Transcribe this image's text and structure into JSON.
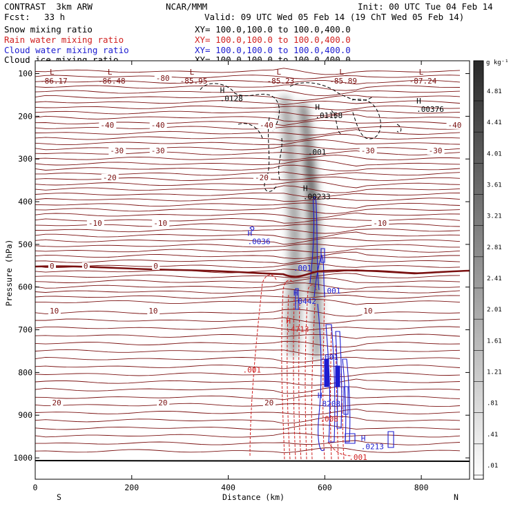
{
  "header": {
    "model": "CONTRAST  3km ARW",
    "center": "NCAR/MMM",
    "init": "Init: 00 UTC Tue 04 Feb 14",
    "fcst_label": "Fcst:",
    "fcst_value": "33 h",
    "valid": "Valid: 09 UTC Wed 05 Feb 14 (19 ChT Wed 05 Feb 14)",
    "fields": [
      {
        "name": "Snow mixing ratio",
        "xy": "XY= 100.0,100.0 to 100.0,400.0",
        "color": "#000000"
      },
      {
        "name": "Rain water mixing ratio",
        "xy": "XY= 100.0,100.0 to 100.0,400.0",
        "color": "#d02020"
      },
      {
        "name": "Cloud water mixing ratio",
        "xy": "XY= 100.0,100.0 to 100.0,400.0",
        "color": "#1c1cd0"
      },
      {
        "name": "Cloud ice mixing ratio",
        "xy": "XY= 100.0,100.0 to 100.0,400.0",
        "color": "#000000"
      }
    ]
  },
  "colorbar": {
    "unit": "g kg⁻¹",
    "labels": [
      "4.81",
      "4.41",
      "4.01",
      "3.61",
      "3.21",
      "2.81",
      "2.41",
      "2.01",
      "1.61",
      "1.21",
      ".81",
      ".41",
      ".01"
    ]
  },
  "chart_data": {
    "type": "contour cross-section",
    "xlabel": "Distance (km)",
    "ylabel": "Pressure (hPa)",
    "xlim": [
      0,
      900
    ],
    "ylim": [
      1050,
      70
    ],
    "xticks": [
      0,
      200,
      400,
      600,
      800
    ],
    "yticks": [
      100,
      200,
      300,
      400,
      500,
      600,
      700,
      800,
      900,
      1000
    ],
    "left_end": "S",
    "right_end": "N",
    "temperature_contours": [
      {
        "label": "-80",
        "x": 250,
        "p": 115
      },
      {
        "label": "-40",
        "x": 135,
        "p": 225
      },
      {
        "label": "-40",
        "x": 240,
        "p": 225
      },
      {
        "label": "-40",
        "x": 465,
        "p": 225
      },
      {
        "label": "-40",
        "x": 855,
        "p": 225
      },
      {
        "label": "-30",
        "x": 155,
        "p": 285
      },
      {
        "label": "-30",
        "x": 240,
        "p": 285
      },
      {
        "label": "-30",
        "x": 675,
        "p": 285
      },
      {
        "label": "-30",
        "x": 815,
        "p": 285
      },
      {
        "label": "-20",
        "x": 140,
        "p": 348
      },
      {
        "label": "-20",
        "x": 455,
        "p": 348
      },
      {
        "label": "-10",
        "x": 110,
        "p": 455
      },
      {
        "label": "-10",
        "x": 245,
        "p": 455
      },
      {
        "label": "-10",
        "x": 700,
        "p": 455
      },
      {
        "label": "0",
        "x": 30,
        "p": 555
      },
      {
        "label": "0",
        "x": 100,
        "p": 555
      },
      {
        "label": "0",
        "x": 245,
        "p": 555
      },
      {
        "label": "10",
        "x": 30,
        "p": 660
      },
      {
        "label": "10",
        "x": 235,
        "p": 660
      },
      {
        "label": "10",
        "x": 680,
        "p": 660
      },
      {
        "label": "20",
        "x": 35,
        "p": 875
      },
      {
        "label": "20",
        "x": 255,
        "p": 875
      },
      {
        "label": "20",
        "x": 475,
        "p": 875
      }
    ],
    "low_labels": [
      {
        "value": "-86.17",
        "x": 10
      },
      {
        "value": "-86.48",
        "x": 130
      },
      {
        "value": "-85.95",
        "x": 300
      },
      {
        "value": "-85.23",
        "x": 480
      },
      {
        "value": "-85.89",
        "x": 610
      },
      {
        "value": "-87.24",
        "x": 775
      }
    ],
    "extrema": [
      {
        "type": "H",
        "value": ".0128",
        "x": 383,
        "p": 150,
        "field": "cloud ice",
        "color": "#000000"
      },
      {
        "type": "H",
        "value": ".01158",
        "x": 580,
        "p": 190,
        "field": "cloud ice",
        "color": "#000000"
      },
      {
        "type": "H",
        "value": ".00376",
        "x": 790,
        "p": 175,
        "field": "cloud ice",
        "color": "#000000"
      },
      {
        "type": "H",
        "value": ".00233",
        "x": 555,
        "p": 380,
        "field": "snow",
        "color": "#000000"
      },
      {
        "type": "H",
        "value": ".0036",
        "x": 440,
        "p": 485,
        "field": "cloud water",
        "color": "#1c1cd0"
      },
      {
        "type": "H",
        "value": ".0442",
        "x": 535,
        "p": 625,
        "field": "cloud water",
        "color": "#1c1cd0"
      },
      {
        "type": "H",
        "value": ".4713",
        "x": 520,
        "p": 690,
        "field": "rain water",
        "color": "#d02020"
      },
      {
        "type": "H",
        "value": ".8208",
        "x": 585,
        "p": 865,
        "field": "cloud water",
        "color": "#1c1cd0"
      },
      {
        "type": "H",
        "value": ".0213",
        "x": 675,
        "p": 965,
        "field": "cloud water",
        "color": "#1c1cd0"
      }
    ],
    "contour_value_labels": [
      {
        "value": ".001",
        "x": 565,
        "p": 290,
        "color": "#000000"
      },
      {
        "value": ".001",
        "x": 535,
        "p": 562,
        "color": "#1c1cd0"
      },
      {
        "value": ".001",
        "x": 595,
        "p": 615,
        "color": "#1c1cd0"
      },
      {
        "value": ".001",
        "x": 590,
        "p": 770,
        "color": "#1c1cd0"
      },
      {
        "value": ".001",
        "x": 430,
        "p": 800,
        "color": "#d02020"
      },
      {
        "value": ".008",
        "x": 590,
        "p": 915,
        "color": "#d02020"
      },
      {
        "value": ".001",
        "x": 650,
        "p": 1005,
        "color": "#d02020"
      }
    ]
  }
}
